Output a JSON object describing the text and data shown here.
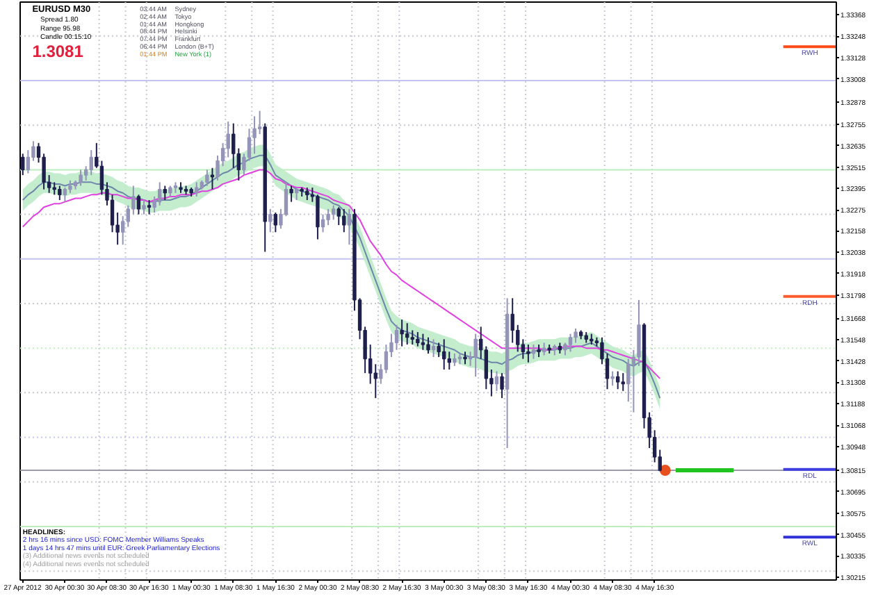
{
  "chart_data": {
    "type": "candlestick",
    "title": "EURUSD M30",
    "categories": [
      "27 Apr 2012",
      null,
      null,
      null,
      null,
      null,
      null,
      null,
      "30 Apr 00:30",
      null,
      null,
      null,
      null,
      null,
      null,
      null,
      "30 Apr 08:30",
      null,
      null,
      null,
      null,
      null,
      null,
      null,
      "30 Apr 16:30",
      null,
      null,
      null,
      null,
      null,
      null,
      null,
      "1 May 00:30",
      null,
      null,
      null,
      null,
      null,
      null,
      null,
      "1 May 08:30",
      null,
      null,
      null,
      null,
      null,
      null,
      null,
      "1 May 16:30",
      null,
      null,
      null,
      null,
      null,
      null,
      null,
      "2 May 00:30",
      null,
      null,
      null,
      null,
      null,
      null,
      null,
      "2 May 08:30",
      null,
      null,
      null,
      null,
      null,
      null,
      null,
      "2 May 16:30",
      null,
      null,
      null,
      null,
      null,
      null,
      null,
      "3 May 00:30",
      null,
      null,
      null,
      null,
      null,
      null,
      null,
      "3 May 08:30",
      null,
      null,
      null,
      null,
      null,
      null,
      null,
      "3 May 16:30",
      null,
      null,
      null,
      null,
      null,
      null,
      null,
      "4 May 00:30",
      null,
      null,
      null,
      null,
      null,
      null,
      null,
      "4 May 08:30",
      null,
      null,
      null,
      null,
      null,
      null,
      null,
      "4 May 16:30",
      null,
      null,
      null,
      null,
      null,
      null,
      null,
      null,
      null,
      null,
      null,
      null,
      null,
      null,
      null,
      null,
      null,
      null,
      null,
      null,
      null,
      null,
      null,
      null,
      null,
      null,
      null,
      null,
      null,
      null,
      null,
      null,
      null,
      null
    ],
    "ylim": [
      1.302,
      1.3344
    ],
    "yticks": [
      1.30215,
      1.30335,
      1.30455,
      1.30575,
      1.30695,
      1.30815,
      1.30948,
      1.31068,
      1.31188,
      1.31308,
      1.31428,
      1.31548,
      1.31668,
      1.31798,
      1.31918,
      1.32038,
      1.32158,
      1.32275,
      1.32395,
      1.32515,
      1.32635,
      1.32755,
      1.32878,
      1.33008,
      1.33128,
      1.33248,
      1.33368
    ],
    "ohlc": [
      [
        1.3257,
        1.3259,
        1.3247,
        1.325
      ],
      [
        1.325,
        1.3261,
        1.3248,
        1.3257
      ],
      [
        1.3257,
        1.3266,
        1.3255,
        1.3263
      ],
      [
        1.3263,
        1.3265,
        1.3254,
        1.3257
      ],
      [
        1.3257,
        1.3259,
        1.3239,
        1.3243
      ],
      [
        1.3243,
        1.3247,
        1.3237,
        1.324
      ],
      [
        1.324,
        1.3243,
        1.3236,
        1.3239
      ],
      [
        1.3239,
        1.3241,
        1.3233,
        1.3236
      ],
      [
        1.3236,
        1.324,
        1.3232,
        1.3239
      ],
      [
        1.3239,
        1.3244,
        1.3237,
        1.3241
      ],
      [
        1.3241,
        1.3244,
        1.3239,
        1.3243
      ],
      [
        1.3243,
        1.325,
        1.3241,
        1.3247
      ],
      [
        1.3247,
        1.3252,
        1.3244,
        1.325
      ],
      [
        1.325,
        1.3261,
        1.3247,
        1.3257
      ],
      [
        1.3257,
        1.3265,
        1.3251,
        1.3252
      ],
      [
        1.3252,
        1.3255,
        1.3236,
        1.3239
      ],
      [
        1.3239,
        1.3243,
        1.323,
        1.3233
      ],
      [
        1.3233,
        1.3236,
        1.3215,
        1.3219
      ],
      [
        1.3219,
        1.3226,
        1.3208,
        1.3215
      ],
      [
        1.3215,
        1.3224,
        1.3208,
        1.3221
      ],
      [
        1.3221,
        1.323,
        1.3218,
        1.3228
      ],
      [
        1.3228,
        1.3241,
        1.3225,
        1.3235
      ],
      [
        1.3235,
        1.3236,
        1.3225,
        1.3228
      ],
      [
        1.3228,
        1.3233,
        1.3225,
        1.323
      ],
      [
        1.323,
        1.3233,
        1.3225,
        1.3229
      ],
      [
        1.3229,
        1.3235,
        1.3226,
        1.3232
      ],
      [
        1.3232,
        1.3243,
        1.323,
        1.3239
      ],
      [
        1.3239,
        1.3241,
        1.3233,
        1.3237
      ],
      [
        1.3237,
        1.3241,
        1.3235,
        1.324
      ],
      [
        1.324,
        1.3243,
        1.3237,
        1.3241
      ],
      [
        1.324,
        1.3243,
        1.3237,
        1.3239
      ],
      [
        1.3239,
        1.3241,
        1.3236,
        1.3238
      ],
      [
        1.3239,
        1.324,
        1.3235,
        1.3237
      ],
      [
        1.3237,
        1.3243,
        1.3235,
        1.324
      ],
      [
        1.324,
        1.3244,
        1.3239,
        1.3243
      ],
      [
        1.3243,
        1.325,
        1.3241,
        1.3247
      ],
      [
        1.3247,
        1.3251,
        1.3239,
        1.3246
      ],
      [
        1.3246,
        1.3258,
        1.3244,
        1.3255
      ],
      [
        1.3255,
        1.3265,
        1.3252,
        1.3262
      ],
      [
        1.3262,
        1.3277,
        1.3257,
        1.327
      ],
      [
        1.327,
        1.3276,
        1.3251,
        1.3259
      ],
      [
        1.3259,
        1.3262,
        1.3244,
        1.325
      ],
      [
        1.325,
        1.3259,
        1.3247,
        1.3257
      ],
      [
        1.3257,
        1.3273,
        1.3255,
        1.3268
      ],
      [
        1.3268,
        1.328,
        1.3259,
        1.3273
      ],
      [
        1.3273,
        1.3283,
        1.327,
        1.3274
      ],
      [
        1.3274,
        1.3276,
        1.3204,
        1.3221
      ],
      [
        1.3221,
        1.3228,
        1.3215,
        1.3225
      ],
      [
        1.3225,
        1.3226,
        1.3215,
        1.3219
      ],
      [
        1.3219,
        1.3228,
        1.3217,
        1.3225
      ],
      [
        1.3225,
        1.3243,
        1.3224,
        1.3239
      ],
      [
        1.3239,
        1.3241,
        1.3232,
        1.3237
      ],
      [
        1.3237,
        1.324,
        1.3233,
        1.3239
      ],
      [
        1.3239,
        1.324,
        1.3235,
        1.3238
      ],
      [
        1.3238,
        1.324,
        1.3233,
        1.3236
      ],
      [
        1.3236,
        1.324,
        1.3232,
        1.3235
      ],
      [
        1.3235,
        1.3236,
        1.3211,
        1.3218
      ],
      [
        1.3218,
        1.3225,
        1.3215,
        1.3222
      ],
      [
        1.3222,
        1.3228,
        1.3219,
        1.3225
      ],
      [
        1.3225,
        1.323,
        1.3222,
        1.3228
      ],
      [
        1.3228,
        1.3229,
        1.3219,
        1.3224
      ],
      [
        1.3224,
        1.3228,
        1.3215,
        1.3219
      ],
      [
        1.3219,
        1.3228,
        1.3208,
        1.3225
      ],
      [
        1.3225,
        1.3228,
        1.3171,
        1.3177
      ],
      [
        1.3177,
        1.3178,
        1.3155,
        1.316
      ],
      [
        1.316,
        1.3162,
        1.3136,
        1.3144
      ],
      [
        1.3144,
        1.3152,
        1.313,
        1.3136
      ],
      [
        1.3136,
        1.3141,
        1.3122,
        1.3133
      ],
      [
        1.3133,
        1.3141,
        1.313,
        1.3138
      ],
      [
        1.3138,
        1.3152,
        1.3136,
        1.3148
      ],
      [
        1.3148,
        1.3158,
        1.3145,
        1.3153
      ],
      [
        1.3153,
        1.3163,
        1.3149,
        1.316
      ],
      [
        1.316,
        1.3166,
        1.3151,
        1.3158
      ],
      [
        1.3158,
        1.3164,
        1.3152,
        1.3156
      ],
      [
        1.3156,
        1.316,
        1.3152,
        1.3155
      ],
      [
        1.3155,
        1.3159,
        1.3151,
        1.3153
      ],
      [
        1.3153,
        1.3158,
        1.3149,
        1.3152
      ],
      [
        1.3152,
        1.3156,
        1.3147,
        1.3149
      ],
      [
        1.3149,
        1.3155,
        1.3145,
        1.3151
      ],
      [
        1.3151,
        1.3153,
        1.3145,
        1.3148
      ],
      [
        1.3148,
        1.3155,
        1.3138,
        1.3144
      ],
      [
        1.3144,
        1.3148,
        1.3138,
        1.3142
      ],
      [
        1.3142,
        1.3147,
        1.314,
        1.3144
      ],
      [
        1.3144,
        1.3147,
        1.3141,
        1.3145
      ],
      [
        1.3145,
        1.3148,
        1.3141,
        1.3144
      ],
      [
        1.3144,
        1.3148,
        1.314,
        1.3145
      ],
      [
        1.3145,
        1.3158,
        1.3134,
        1.3155
      ],
      [
        1.3155,
        1.3162,
        1.3144,
        1.3149
      ],
      [
        1.3149,
        1.3151,
        1.3127,
        1.3133
      ],
      [
        1.3133,
        1.3138,
        1.3123,
        1.313
      ],
      [
        1.313,
        1.3137,
        1.3126,
        1.3134
      ],
      [
        1.3134,
        1.3136,
        1.3122,
        1.3127
      ],
      [
        1.3127,
        1.3178,
        1.3094,
        1.3169
      ],
      [
        1.3169,
        1.3178,
        1.3153,
        1.316
      ],
      [
        1.316,
        1.3163,
        1.3148,
        1.3152
      ],
      [
        1.3152,
        1.3155,
        1.3144,
        1.3148
      ],
      [
        1.3148,
        1.3152,
        1.3142,
        1.3147
      ],
      [
        1.3147,
        1.3152,
        1.3144,
        1.3149
      ],
      [
        1.3149,
        1.3152,
        1.3145,
        1.3148
      ],
      [
        1.3148,
        1.3153,
        1.3146,
        1.315
      ],
      [
        1.315,
        1.3152,
        1.3147,
        1.3149
      ],
      [
        1.3149,
        1.3152,
        1.3146,
        1.3151
      ],
      [
        1.3151,
        1.3153,
        1.3147,
        1.3149
      ],
      [
        1.3149,
        1.3153,
        1.3146,
        1.3152
      ],
      [
        1.3152,
        1.3158,
        1.3148,
        1.3156
      ],
      [
        1.3156,
        1.3161,
        1.3153,
        1.3159
      ],
      [
        1.3159,
        1.316,
        1.3155,
        1.3157
      ],
      [
        1.3157,
        1.3159,
        1.3153,
        1.3155
      ],
      [
        1.3155,
        1.3158,
        1.3152,
        1.3154
      ],
      [
        1.3154,
        1.3156,
        1.3151,
        1.3153
      ],
      [
        1.3153,
        1.3156,
        1.3141,
        1.3144
      ],
      [
        1.3144,
        1.3147,
        1.3127,
        1.3133
      ],
      [
        1.3133,
        1.3137,
        1.3129,
        1.3134
      ],
      [
        1.3134,
        1.3137,
        1.3127,
        1.3131
      ],
      [
        1.3131,
        1.3136,
        1.3126,
        1.313
      ],
      [
        1.313,
        1.3144,
        1.312,
        1.3141
      ],
      [
        1.3141,
        1.3149,
        1.3114,
        1.3145
      ],
      [
        1.3145,
        1.3177,
        1.314,
        1.3163
      ],
      [
        1.3163,
        1.3164,
        1.3105,
        1.3111
      ],
      [
        1.3111,
        1.3114,
        1.3094,
        1.31
      ],
      [
        1.31,
        1.3104,
        1.3086,
        1.3089
      ],
      [
        1.3089,
        1.3093,
        1.3081,
        1.30815
      ],
      null,
      null,
      null,
      null,
      null,
      null,
      null,
      null,
      null,
      null,
      null,
      null,
      null,
      null,
      null,
      null,
      null,
      null,
      null,
      null,
      null,
      null,
      null,
      null,
      null,
      null,
      null,
      null,
      null,
      null,
      null,
      null,
      null
    ],
    "colors": [
      "#1f1f4d",
      "#9494b8",
      "#9494b8",
      "#1f1f4d",
      "#1f1f4d",
      "#1f1f4d",
      "#1f1f4d",
      "#1f1f4d",
      "#9494b8",
      "#9494b8",
      "#9494b8",
      "#9494b8",
      "#9494b8",
      "#9494b8",
      "#1f1f4d",
      "#1f1f4d",
      "#1f1f4d",
      "#1f1f4d",
      "#1f1f4d",
      "#9494b8",
      "#9494b8",
      "#9494b8",
      "#1f1f4d",
      "#9494b8",
      "#1f1f4d",
      "#9494b8",
      "#9494b8",
      "#1f1f4d",
      "#9494b8",
      "#9494b8",
      "#1f1f4d",
      "#1f1f4d",
      "#1f1f4d",
      "#9494b8",
      "#9494b8",
      "#9494b8",
      "#1f1f4d",
      "#9494b8",
      "#9494b8",
      "#9494b8",
      "#1f1f4d",
      "#1f1f4d",
      "#9494b8",
      "#9494b8",
      "#9494b8",
      "#9494b8",
      "#1f1f4d",
      "#9494b8",
      "#1f1f4d",
      "#9494b8",
      "#9494b8",
      "#1f1f4d",
      "#9494b8",
      "#1f1f4d",
      "#1f1f4d",
      "#1f1f4d",
      "#1f1f4d",
      "#9494b8",
      "#9494b8",
      "#9494b8",
      "#1f1f4d",
      "#1f1f4d",
      "#9494b8",
      "#1f1f4d",
      "#1f1f4d",
      "#1f1f4d",
      "#1f1f4d",
      "#1f1f4d",
      "#9494b8",
      "#9494b8",
      "#9494b8",
      "#9494b8",
      "#1f1f4d",
      "#1f1f4d",
      "#1f1f4d",
      "#1f1f4d",
      "#1f1f4d",
      "#1f1f4d",
      "#9494b8",
      "#1f1f4d",
      "#1f1f4d",
      "#1f1f4d",
      "#9494b8",
      "#9494b8",
      "#1f1f4d",
      "#9494b8",
      "#9494b8",
      "#1f1f4d",
      "#1f1f4d",
      "#1f1f4d",
      "#9494b8",
      "#1f1f4d",
      "#9494b8",
      "#1f1f4d",
      "#1f1f4d",
      "#1f1f4d",
      "#1f1f4d",
      "#9494b8",
      "#1f1f4d",
      "#9494b8",
      "#1f1f4d",
      "#9494b8",
      "#1f1f4d",
      "#9494b8",
      "#9494b8",
      "#9494b8",
      "#1f1f4d",
      "#1f1f4d",
      "#1f1f4d",
      "#1f1f4d",
      "#1f1f4d",
      "#1f1f4d",
      "#9494b8",
      "#1f1f4d",
      "#1f1f4d",
      "#9494b8",
      "#9494b8",
      "#9494b8",
      "#1f1f4d",
      "#1f1f4d",
      "#1f1f4d",
      "#1f1f4d",
      null,
      null,
      null,
      null,
      null,
      null,
      null,
      null,
      null,
      null,
      null,
      null,
      null,
      null,
      null,
      null,
      null,
      null,
      null,
      null,
      null,
      null,
      null,
      null,
      null,
      null,
      null,
      null,
      null,
      null,
      null,
      null,
      null
    ],
    "series": [
      {
        "type": "line",
        "color": "#6f86aa",
        "values": [
          1.3233,
          1.3236,
          1.3238,
          1.3241,
          1.3243,
          1.3243,
          1.3242,
          1.3242,
          1.3241,
          1.3242,
          1.3242,
          1.3243,
          1.3243,
          1.3243,
          1.3242,
          1.3242,
          1.3241,
          1.324,
          1.3238,
          1.3237,
          1.3235,
          1.3234,
          1.3234,
          1.3233,
          1.3232,
          1.3232,
          1.3233,
          1.3233,
          1.3233,
          1.3234,
          1.3235,
          1.3235,
          1.3236,
          1.3238,
          1.324,
          1.3242,
          1.3244,
          1.3246,
          1.3248,
          1.3249,
          1.3251,
          1.3253,
          1.3254,
          1.3256,
          1.3257,
          1.3258,
          1.3258,
          1.3253,
          1.3247,
          1.3245,
          1.3243,
          1.3241,
          1.3239,
          1.3238,
          1.3237,
          1.3236,
          1.3235,
          1.3234,
          1.3233,
          1.3231,
          1.323,
          1.3227,
          1.3224,
          1.3218,
          1.3212,
          1.3204,
          1.3196,
          1.3188,
          1.318,
          1.3172,
          1.3165,
          1.3162,
          1.316,
          1.3159,
          1.3158,
          1.3156,
          1.3155,
          1.3154,
          1.3153,
          1.3152,
          1.3151,
          1.315,
          1.3149,
          1.3147,
          1.3146,
          1.3145,
          1.3145,
          1.3144,
          1.3143,
          1.3142,
          1.3142,
          1.3141,
          1.3143,
          1.3144,
          1.3146,
          1.3147,
          1.3147,
          1.3148,
          1.3149,
          1.3149,
          1.3149,
          1.3149,
          1.315,
          1.315,
          1.315,
          1.3151,
          1.3151,
          1.3152,
          1.3153,
          1.3151,
          1.3149,
          1.3147,
          1.3145,
          1.3144,
          1.3143,
          1.3141,
          1.314,
          1.3142,
          1.3143,
          1.3137,
          1.313,
          1.3122,
          null,
          null,
          null,
          null,
          null,
          null,
          null,
          null,
          null,
          null,
          null,
          null,
          null,
          null,
          null,
          null,
          null,
          null,
          null,
          null,
          null,
          null,
          null,
          null,
          null,
          null,
          null,
          null,
          null,
          null,
          null,
          null,
          null
        ],
        "lower": [
          1.3227,
          1.323,
          1.3232,
          1.3235,
          1.3237,
          1.3237,
          1.3236,
          1.3236,
          1.3235,
          1.3236,
          1.3236,
          1.3237,
          1.3237,
          1.3237,
          1.3236,
          1.3236,
          1.3235,
          1.3234,
          1.3232,
          1.3231,
          1.3229,
          1.3228,
          1.3228,
          1.3227,
          1.3226,
          1.3226,
          1.3227,
          1.3227,
          1.3227,
          1.3228,
          1.3229,
          1.3229,
          1.323,
          1.3232,
          1.3234,
          1.3236,
          1.3238,
          1.324,
          1.3242,
          1.3243,
          1.3245,
          1.3247,
          1.3248,
          1.325,
          1.3251,
          1.3252,
          1.3252,
          1.3247,
          1.3241,
          1.3239,
          1.3237,
          1.3235,
          1.3233,
          1.3232,
          1.3231,
          1.323,
          1.3229,
          1.3228,
          1.3227,
          1.3225,
          1.3224,
          1.3221,
          1.3218,
          1.3212,
          1.3206,
          1.3198,
          1.319,
          1.3182,
          1.3174,
          1.3166,
          1.3159,
          1.3156,
          1.3154,
          1.3153,
          1.3152,
          1.315,
          1.3149,
          1.3148,
          1.3147,
          1.3146,
          1.3145,
          1.3144,
          1.3143,
          1.3141,
          1.314,
          1.3139,
          1.3139,
          1.3138,
          1.3137,
          1.3136,
          1.3136,
          1.3135,
          1.3137,
          1.3138,
          1.314,
          1.3141,
          1.3141,
          1.3142,
          1.3143,
          1.3143,
          1.3143,
          1.3143,
          1.3144,
          1.3144,
          1.3144,
          1.3145,
          1.3145,
          1.3146,
          1.3147,
          1.3145,
          1.3143,
          1.3141,
          1.3139,
          1.3138,
          1.3137,
          1.3135,
          1.3134,
          1.3136,
          1.3137,
          1.3131,
          1.3124,
          1.3116,
          null,
          null,
          null,
          null,
          null,
          null,
          null,
          null,
          null,
          null,
          null,
          null,
          null,
          null,
          null,
          null,
          null,
          null,
          null,
          null,
          null,
          null,
          null,
          null,
          null,
          null,
          null,
          null,
          null,
          null,
          null,
          null,
          null
        ],
        "upper": [
          1.3239,
          1.3242,
          1.3244,
          1.3247,
          1.3249,
          1.3249,
          1.3248,
          1.3248,
          1.3247,
          1.3248,
          1.3248,
          1.3249,
          1.3249,
          1.3249,
          1.3248,
          1.3248,
          1.3247,
          1.3246,
          1.3244,
          1.3243,
          1.3241,
          1.324,
          1.324,
          1.3239,
          1.3238,
          1.3238,
          1.3239,
          1.3239,
          1.3239,
          1.324,
          1.3241,
          1.3241,
          1.3242,
          1.3244,
          1.3246,
          1.3248,
          1.325,
          1.3252,
          1.3254,
          1.3255,
          1.3257,
          1.3259,
          1.326,
          1.3262,
          1.3263,
          1.3264,
          1.3264,
          1.3259,
          1.3253,
          1.3251,
          1.3249,
          1.3247,
          1.3245,
          1.3244,
          1.3243,
          1.3242,
          1.3241,
          1.324,
          1.3239,
          1.3237,
          1.3236,
          1.3233,
          1.323,
          1.3224,
          1.3218,
          1.321,
          1.3202,
          1.3194,
          1.3186,
          1.3178,
          1.3171,
          1.3168,
          1.3166,
          1.3165,
          1.3164,
          1.3162,
          1.3161,
          1.316,
          1.3159,
          1.3158,
          1.3157,
          1.3156,
          1.3155,
          1.3153,
          1.3152,
          1.3151,
          1.3151,
          1.315,
          1.3149,
          1.3148,
          1.3148,
          1.3147,
          1.3149,
          1.315,
          1.3152,
          1.3153,
          1.3153,
          1.3154,
          1.3155,
          1.3155,
          1.3155,
          1.3155,
          1.3156,
          1.3156,
          1.3156,
          1.3157,
          1.3157,
          1.3158,
          1.3159,
          1.3157,
          1.3155,
          1.3153,
          1.3151,
          1.315,
          1.3149,
          1.3147,
          1.3146,
          1.3148,
          1.3149,
          1.3143,
          1.3136,
          1.3128,
          null,
          null,
          null,
          null,
          null,
          null,
          null,
          null,
          null,
          null,
          null,
          null,
          null,
          null,
          null,
          null,
          null,
          null,
          null,
          null,
          null,
          null,
          null,
          null,
          null,
          null,
          null,
          null,
          null,
          null,
          null,
          null,
          null
        ]
      },
      {
        "type": "line",
        "color": "#e040e0",
        "values": [
          1.3218,
          1.3221,
          1.3224,
          1.3226,
          1.3229,
          1.323,
          1.3231,
          1.3231,
          1.3232,
          1.3233,
          1.3234,
          1.3234,
          1.3235,
          1.3236,
          1.3236,
          1.3237,
          1.3237,
          1.3236,
          1.3236,
          1.3235,
          1.3234,
          1.3234,
          1.3233,
          1.3233,
          1.3232,
          1.3233,
          1.3234,
          1.3234,
          1.3235,
          1.3235,
          1.3236,
          1.3236,
          1.3236,
          1.3237,
          1.3238,
          1.3238,
          1.3239,
          1.324,
          1.3242,
          1.3243,
          1.3244,
          1.3245,
          1.3247,
          1.3248,
          1.3249,
          1.325,
          1.325,
          1.3248,
          1.3245,
          1.3244,
          1.3242,
          1.3241,
          1.324,
          1.324,
          1.3239,
          1.3238,
          1.3237,
          1.3236,
          1.3235,
          1.3233,
          1.3232,
          1.3231,
          1.323,
          1.3226,
          1.3222,
          1.3216,
          1.321,
          1.3206,
          1.3202,
          1.3197,
          1.3193,
          1.3191,
          1.3188,
          1.3186,
          1.3184,
          1.3182,
          1.318,
          1.3178,
          1.3176,
          1.3174,
          1.3172,
          1.317,
          1.3168,
          1.3166,
          1.3164,
          1.3162,
          1.316,
          1.3158,
          1.3156,
          1.3154,
          1.3152,
          1.315,
          1.315,
          1.315,
          1.315,
          1.315,
          1.315,
          1.315,
          1.315,
          1.3149,
          1.3149,
          1.315,
          1.315,
          1.3151,
          1.3151,
          1.3151,
          1.3151,
          1.315,
          1.315,
          1.315,
          1.3149,
          1.3149,
          1.3148,
          1.3147,
          1.3146,
          1.3145,
          1.3144,
          1.3143,
          1.3142,
          1.3139,
          1.3136,
          1.3133,
          null,
          null,
          null,
          null,
          null,
          null,
          null,
          null,
          null,
          null,
          null,
          null,
          null,
          null,
          null,
          null,
          null,
          null,
          null,
          null,
          null,
          null,
          null,
          null,
          null,
          null,
          null,
          null,
          null,
          null,
          null,
          null,
          null
        ]
      },
      {
        "type": "scatter",
        "color": "#e8501e",
        "marker": "circle",
        "values": [
          null,
          null,
          null,
          null,
          null,
          null,
          null,
          null,
          null,
          null,
          null,
          null,
          null,
          null,
          null,
          null,
          null,
          null,
          null,
          null,
          null,
          null,
          null,
          null,
          null,
          null,
          null,
          null,
          null,
          null,
          null,
          null,
          null,
          null,
          null,
          null,
          null,
          null,
          null,
          null,
          null,
          null,
          null,
          null,
          null,
          null,
          null,
          null,
          null,
          null,
          null,
          null,
          null,
          null,
          null,
          null,
          null,
          null,
          null,
          null,
          null,
          null,
          null,
          null,
          null,
          null,
          null,
          null,
          null,
          null,
          null,
          null,
          null,
          null,
          null,
          null,
          null,
          null,
          null,
          null,
          null,
          null,
          null,
          null,
          null,
          null,
          null,
          null,
          null,
          null,
          null,
          null,
          null,
          null,
          null,
          null,
          null,
          null,
          null,
          null,
          null,
          null,
          null,
          null,
          null,
          null,
          null,
          null,
          null,
          null,
          null,
          null,
          null,
          null,
          null,
          null,
          null,
          null,
          null,
          null,
          null,
          null,
          1.30815,
          null,
          null,
          null,
          null,
          null,
          null,
          null,
          null,
          null,
          null,
          null,
          null,
          null,
          null,
          null,
          null,
          null,
          null,
          null,
          null,
          null,
          null,
          null,
          null,
          null,
          null,
          null,
          null,
          null,
          null,
          null,
          null
        ]
      },
      {
        "type": "line",
        "color": "#22c422",
        "values": [
          null,
          null,
          null,
          null,
          null,
          null,
          null,
          null,
          null,
          null,
          null,
          null,
          null,
          null,
          null,
          null,
          null,
          null,
          null,
          null,
          null,
          null,
          null,
          null,
          null,
          null,
          null,
          null,
          null,
          null,
          null,
          null,
          null,
          null,
          null,
          null,
          null,
          null,
          null,
          null,
          null,
          null,
          null,
          null,
          null,
          null,
          null,
          null,
          null,
          null,
          null,
          null,
          null,
          null,
          null,
          null,
          null,
          null,
          null,
          null,
          null,
          null,
          null,
          null,
          null,
          null,
          null,
          null,
          null,
          null,
          null,
          null,
          null,
          null,
          null,
          null,
          null,
          null,
          null,
          null,
          null,
          null,
          null,
          null,
          null,
          null,
          null,
          null,
          null,
          null,
          null,
          null,
          null,
          null,
          null,
          null,
          null,
          null,
          null,
          null,
          null,
          null,
          null,
          null,
          null,
          null,
          null,
          null,
          null,
          null,
          null,
          null,
          null,
          null,
          null,
          null,
          null,
          null,
          null,
          null,
          null,
          null,
          null,
          null,
          1.30815,
          1.30815,
          1.30815,
          1.30815,
          1.30815,
          1.30815,
          1.30815,
          1.30815,
          1.30815,
          1.30815,
          1.30815,
          1.30815,
          null,
          null,
          null,
          null,
          null,
          null,
          null,
          null,
          null,
          null,
          null,
          null,
          null,
          null,
          null,
          null,
          null,
          null,
          null
        ]
      }
    ],
    "ref_lines": [
      {
        "axis": "y",
        "value": 1.3325,
        "color": "#c8c8d4",
        "line_style": "dotted"
      },
      {
        "axis": "y",
        "value": 1.33,
        "color": "#c4c4f0"
      },
      {
        "axis": "y",
        "value": 1.3275,
        "color": "#c8c8d4",
        "line_style": "dotted"
      },
      {
        "axis": "y",
        "value": 1.325,
        "color": "#bdeebd"
      },
      {
        "axis": "y",
        "value": 1.3225,
        "color": "#c8c8d4",
        "line_style": "dotted"
      },
      {
        "axis": "y",
        "value": 1.32,
        "color": "#c4c4f0"
      },
      {
        "axis": "y",
        "value": 1.3175,
        "color": "#c8c8d4",
        "line_style": "dotted"
      },
      {
        "axis": "y",
        "value": 1.315,
        "color": "#bdeebd",
        "line_style": "dotted"
      },
      {
        "axis": "y",
        "value": 1.3125,
        "color": "#c8c8d4",
        "line_style": "dotted"
      },
      {
        "axis": "y",
        "value": 1.31,
        "color": "#c4c4f0",
        "line_style": "dotted"
      },
      {
        "axis": "y",
        "value": 1.3075,
        "color": "#c8c8d4",
        "line_style": "dotted"
      },
      {
        "axis": "y",
        "value": 1.305,
        "color": "#bdeebd"
      },
      {
        "axis": "y",
        "value": 1.3025,
        "color": "#c8c8d4",
        "line_style": "dotted"
      },
      {
        "axis": "y",
        "value": 1.30815,
        "color": "#9a9aa8"
      },
      {
        "axis": "y",
        "value": 1.3319,
        "label": "RWH",
        "color": "#ff4a1a"
      },
      {
        "axis": "y",
        "value": 1.3179,
        "label": "RDH",
        "color": "#ff5a2a"
      },
      {
        "axis": "y",
        "value": 1.3082,
        "label": "RDL",
        "color": "#4040e0"
      },
      {
        "axis": "y",
        "value": 1.3044,
        "label": "RWL",
        "color": "#3030d8"
      }
    ],
    "annotations": [
      "Spread 1.80",
      "Range 95.98",
      "Candle 00:15:10",
      "1.3081",
      "03:44 AM",
      "02:44 AM",
      "01:44 AM",
      "08:44 PM",
      "07:44 PM",
      "06:44 PM",
      "01:44 PM",
      "Sydney",
      "Tokyo",
      "Hongkong",
      "Helsinki",
      "Frankfurt",
      "London (B+T)",
      "New York (1)",
      "HEADLINES:",
      "2 hrs 16 mins since USD: FOMC Member Williams Speaks",
      "1 days 14 hrs 47 mins until EUR: Greek Parliamentary Elections",
      "(3) Additional news events not scheduled",
      "(4) Additional news events not scheduled"
    ]
  }
}
